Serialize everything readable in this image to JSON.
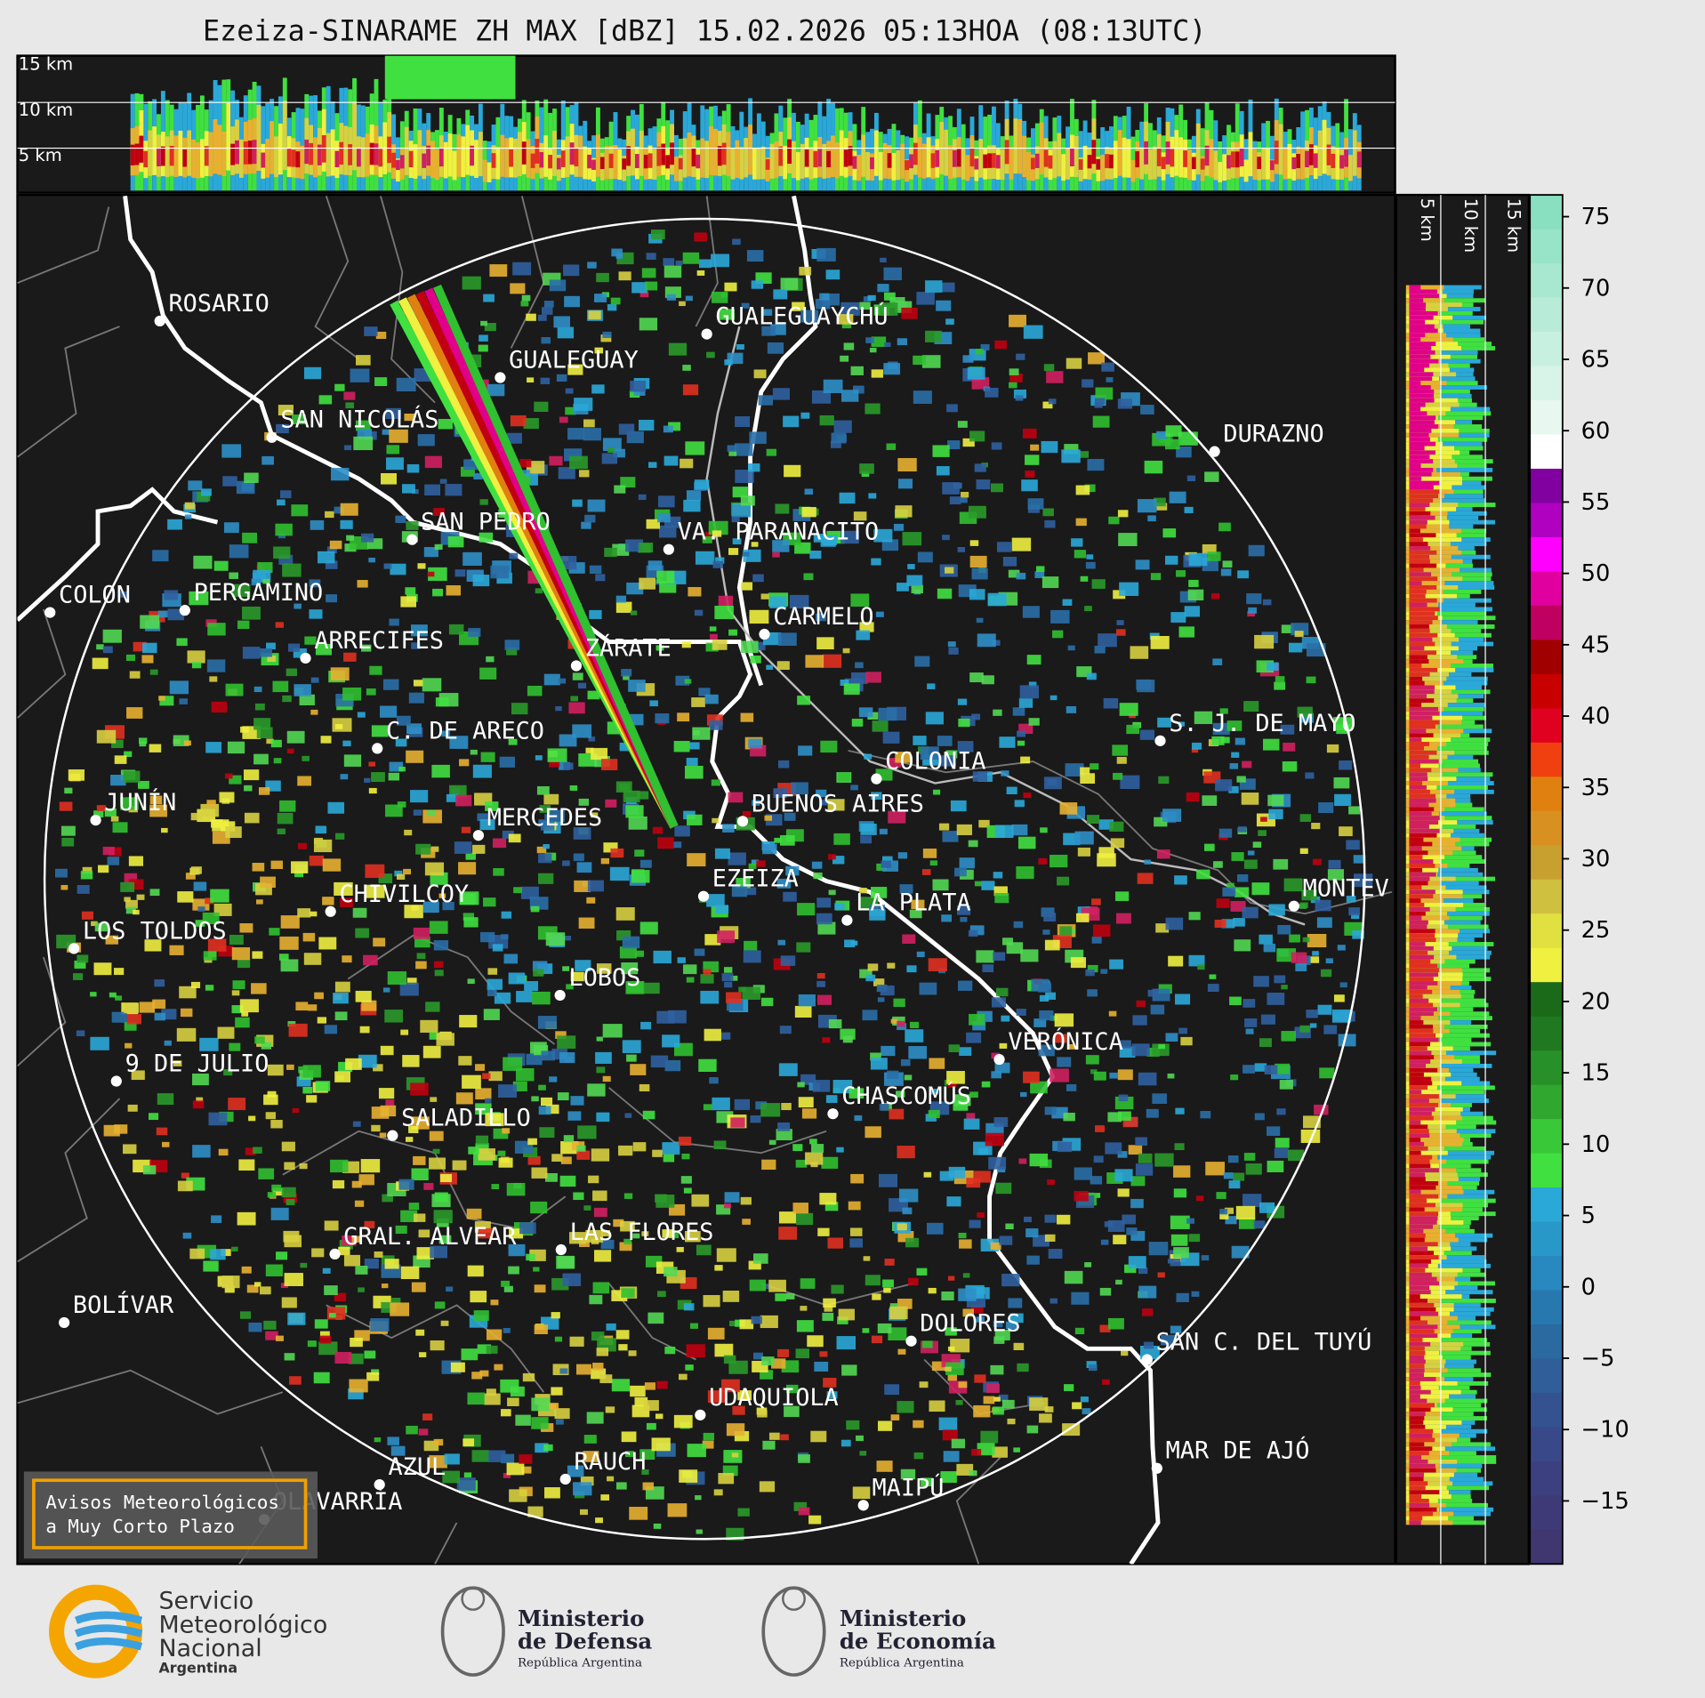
{
  "header": {
    "title": "Ezeiza-SINARAME ZH MAX [dBZ] 15.02.2026 05:13HOA (08:13UTC)"
  },
  "height_labels_top": [
    "15 km",
    "10 km",
    "5 km"
  ],
  "height_labels_side": [
    "5 km",
    "10 km",
    "15 km"
  ],
  "places": [
    "ROSARIO",
    "GUALEGUAYCHÚ",
    "GUALEGUAY",
    "SAN NICOLÁS",
    "DURAZNO",
    "SAN PEDRO",
    "VA. PARANACITO",
    "COLON",
    "PERGAMINO",
    "ARRECIFES",
    "CARMELO",
    "ZÁRATE",
    "S. J. DE MAYO",
    "C. DE ARECO",
    "COLONIA",
    "JUNÍN",
    "BUENOS AIRES",
    "MERCEDES",
    "EZEIZA",
    "MONTEV",
    "CHIVILCOY",
    "LA PLATA",
    "LOS TOLDOS",
    "LOBOS",
    "VERÓNICA",
    "9 DE JULIO",
    "CHASCOMÚS",
    "SALADILLO",
    "GRAL. ALVEAR",
    "LAS FLORES",
    "BOLÍVAR",
    "DOLORES",
    "SAN C. DEL TUYÚ",
    "UDAQUIOLA",
    "MAR DE AJÓ",
    "RAUCH",
    "AZUL",
    "OLAVARRÍA",
    "MAIPÚ"
  ],
  "colorbar": {
    "ticks": [
      "75",
      "70",
      "65",
      "60",
      "55",
      "50",
      "45",
      "40",
      "35",
      "30",
      "25",
      "20",
      "15",
      "10",
      "5",
      "0",
      "−5",
      "−10",
      "−15"
    ]
  },
  "warning": {
    "lines": [
      "Avisos Meteorológicos",
      "a Muy Corto Plazo"
    ]
  },
  "logos": {
    "smn": [
      "Servicio",
      "Meteorológico",
      "Nacional",
      "Argentina"
    ],
    "defensa": [
      "Ministerio",
      "de Defensa",
      "República Argentina"
    ],
    "economia": [
      "Ministerio",
      "de Economía",
      "República Argentina"
    ]
  }
}
